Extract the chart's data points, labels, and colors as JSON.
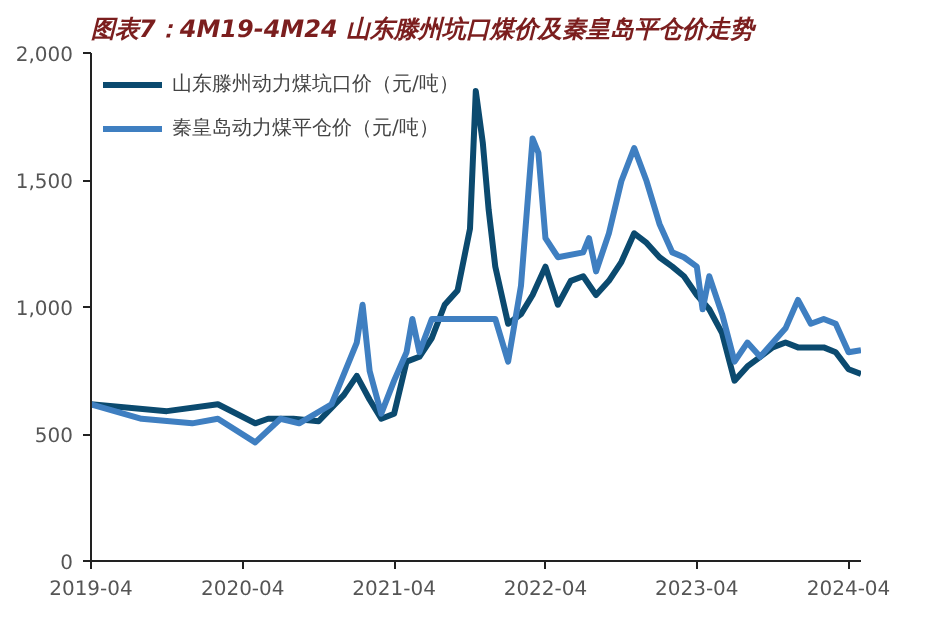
{
  "chart_data": {
    "type": "line",
    "title": "图表7：4M19-4M24 山东滕州坑口煤价及秦皇岛平仓价走势",
    "xlim": [
      "2019-04",
      "2024-05"
    ],
    "xticks": [
      "2019-04",
      "2020-04",
      "2021-04",
      "2022-04",
      "2023-04",
      "2024-04"
    ],
    "ylim": [
      0,
      2000
    ],
    "yticks": [
      0,
      500,
      {
        "value": 1000,
        "label": "1,000"
      },
      {
        "value": 1500,
        "label": "1,500"
      },
      {
        "value": 2000,
        "label": "2,000"
      }
    ],
    "grid": false,
    "legend": "top left",
    "marker": "none",
    "line_style": "solid",
    "series": [
      {
        "name": "山东滕州动力煤坑口价（元/吨）",
        "color": "#0b4a6f",
        "x": [
          "2019-04",
          "2019-10",
          "2020-02",
          "2020-05",
          "2020-06",
          "2020-08",
          "2020-10",
          "2020-12",
          "2021-01",
          "2021-02",
          "2021-03",
          "2021-04",
          "2021-05",
          "2021-06",
          "2021-07",
          "2021-08",
          "2021-09",
          "2021-10",
          "2021-10-15",
          "2021-11",
          "2021-11-15",
          "2021-12",
          "2022-01",
          "2022-02",
          "2022-03",
          "2022-04",
          "2022-05",
          "2022-06",
          "2022-07",
          "2022-08",
          "2022-09",
          "2022-10",
          "2022-11",
          "2022-12",
          "2023-01",
          "2023-02",
          "2023-03",
          "2023-04",
          "2023-05",
          "2023-06",
          "2023-07",
          "2023-08",
          "2023-09",
          "2023-10",
          "2023-11",
          "2023-12",
          "2024-01",
          "2024-02",
          "2024-03",
          "2024-04",
          "2024-05"
        ],
        "values": [
          617,
          590,
          617,
          542,
          560,
          560,
          550,
          654,
          729,
          635,
          560,
          580,
          785,
          804,
          878,
          1009,
          1065,
          1308,
          1850,
          1645,
          1383,
          1159,
          934,
          972,
          1047,
          1159,
          1009,
          1103,
          1121,
          1047,
          1103,
          1177,
          1290,
          1252,
          1196,
          1159,
          1121,
          1047,
          991,
          897,
          710,
          766,
          804,
          841,
          860,
          841,
          841,
          841,
          822,
          755,
          736
        ]
      },
      {
        "name": "秦皇岛动力煤平仓价（元/吨）",
        "color": "#3f7fc1",
        "x": [
          "2019-04",
          "2019-08",
          "2019-12",
          "2020-02",
          "2020-05",
          "2020-07",
          "2020-08-15",
          "2020-11",
          "2021-01",
          "2021-01-15",
          "2021-02",
          "2021-03",
          "2021-04",
          "2021-05",
          "2021-05-15",
          "2021-06",
          "2021-07",
          "2021-12",
          "2022-01",
          "2022-02",
          "2022-03",
          "2022-03-15",
          "2022-04",
          "2022-05",
          "2022-07",
          "2022-07-15",
          "2022-08",
          "2022-09",
          "2022-10",
          "2022-11",
          "2022-12",
          "2023-01",
          "2023-02",
          "2023-03",
          "2023-04",
          "2023-04-15",
          "2023-05",
          "2023-06",
          "2023-07",
          "2023-08",
          "2023-09",
          "2023-11",
          "2023-12",
          "2024-01",
          "2024-02",
          "2024-03",
          "2024-04",
          "2024-05"
        ],
        "values": [
          617,
          560,
          542,
          560,
          467,
          560,
          542,
          617,
          860,
          1009,
          748,
          580,
          710,
          822,
          953,
          822,
          953,
          953,
          785,
          1084,
          1663,
          1607,
          1271,
          1196,
          1215,
          1271,
          1140,
          1290,
          1495,
          1626,
          1495,
          1327,
          1215,
          1196,
          1159,
          991,
          1121,
          972,
          785,
          860,
          804,
          916,
          1028,
          934,
          953,
          934,
          822,
          830
        ]
      }
    ]
  }
}
